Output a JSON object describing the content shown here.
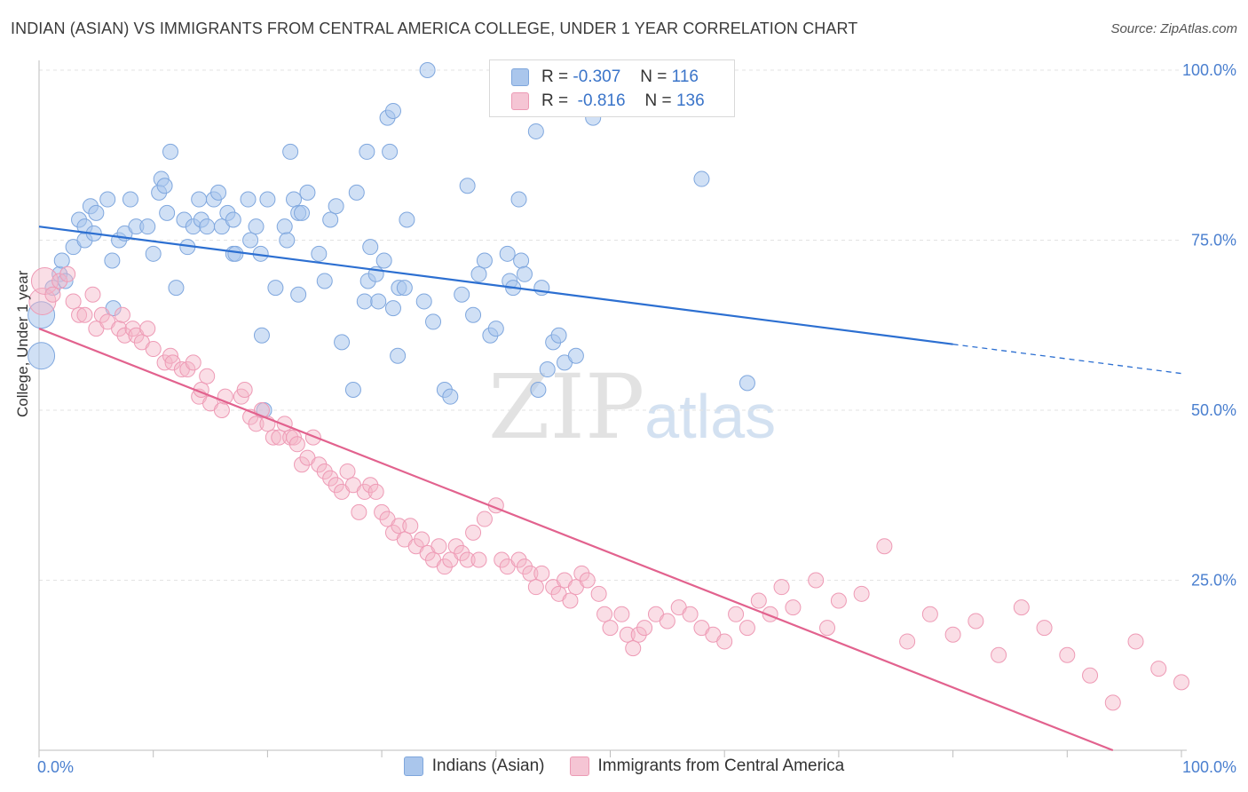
{
  "title": "INDIAN (ASIAN) VS IMMIGRANTS FROM CENTRAL AMERICA COLLEGE, UNDER 1 YEAR CORRELATION CHART",
  "source": "Source: ZipAtlas.com",
  "watermark": {
    "zip": "ZIP",
    "atlas": "atlas"
  },
  "legend_top": {
    "rows": [
      {
        "r_label": "R =",
        "r_value": "-0.307",
        "n_label": "N =",
        "n_value": "116",
        "color": "#aac6ec"
      },
      {
        "r_label": "R =",
        "r_value": "-0.816",
        "n_label": "N =",
        "n_value": "136",
        "color": "#f5b5c8"
      }
    ]
  },
  "legend_bottom": [
    {
      "label": "Indians (Asian)",
      "color": "#aac6ec"
    },
    {
      "label": "Immigrants from Central America",
      "color": "#f5b5c8"
    }
  ],
  "chart_data": {
    "type": "scatter",
    "xlabel": "",
    "ylabel": "College, Under 1 year",
    "xlim": [
      0,
      100
    ],
    "ylim": [
      0,
      100
    ],
    "x_ticklabels": [
      {
        "value": 0,
        "label": "0.0%"
      },
      {
        "value": 100,
        "label": "100.0%"
      }
    ],
    "y_ticklabels": [
      {
        "value": 100,
        "label": "100.0%"
      },
      {
        "value": 75,
        "label": "75.0%"
      },
      {
        "value": 50,
        "label": "50.0%"
      },
      {
        "value": 25,
        "label": "25.0%"
      }
    ],
    "grid": true,
    "series": [
      {
        "name": "Indians (Asian)",
        "color": "#6f9fdc",
        "trend": {
          "x0": 0,
          "y0": 77,
          "x1": 80,
          "y1": 59.7,
          "dash_to_x": 100,
          "dash_to_y": 55.4,
          "color": "#2c6fd1"
        },
        "points": [
          [
            0.2,
            58,
            "L"
          ],
          [
            0.2,
            64,
            "L"
          ],
          [
            1.2,
            68
          ],
          [
            1.8,
            70
          ],
          [
            2,
            72
          ],
          [
            2.3,
            69
          ],
          [
            3,
            74
          ],
          [
            3.5,
            78
          ],
          [
            4,
            77
          ],
          [
            4,
            75
          ],
          [
            4.5,
            80
          ],
          [
            4.8,
            76
          ],
          [
            5,
            79
          ],
          [
            6,
            81
          ],
          [
            6.4,
            72
          ],
          [
            6.5,
            65
          ],
          [
            7,
            75
          ],
          [
            7.5,
            76
          ],
          [
            8,
            81
          ],
          [
            8.5,
            77
          ],
          [
            9.5,
            77
          ],
          [
            10,
            73
          ],
          [
            10.5,
            82
          ],
          [
            10.7,
            84
          ],
          [
            11,
            83
          ],
          [
            11.2,
            79
          ],
          [
            11.5,
            88
          ],
          [
            12,
            68
          ],
          [
            12.7,
            78
          ],
          [
            13,
            74
          ],
          [
            13.5,
            77
          ],
          [
            14,
            81
          ],
          [
            14.2,
            78
          ],
          [
            14.7,
            77
          ],
          [
            15.3,
            81
          ],
          [
            15.7,
            82
          ],
          [
            16,
            77
          ],
          [
            16.5,
            79
          ],
          [
            17,
            73
          ],
          [
            17,
            78
          ],
          [
            17.2,
            73
          ],
          [
            18.3,
            81
          ],
          [
            18.5,
            75
          ],
          [
            19,
            77
          ],
          [
            19.4,
            73
          ],
          [
            19.5,
            61
          ],
          [
            19.7,
            50
          ],
          [
            20,
            81
          ],
          [
            20.7,
            68
          ],
          [
            21.5,
            77
          ],
          [
            21.7,
            75
          ],
          [
            22,
            88
          ],
          [
            22.3,
            81
          ],
          [
            22.7,
            67
          ],
          [
            22.7,
            79
          ],
          [
            23,
            79
          ],
          [
            23.5,
            82
          ],
          [
            24.5,
            73
          ],
          [
            25,
            69
          ],
          [
            25.5,
            78
          ],
          [
            26,
            80
          ],
          [
            26.5,
            60
          ],
          [
            27.5,
            53
          ],
          [
            27.8,
            82
          ],
          [
            28.5,
            66
          ],
          [
            28.7,
            88
          ],
          [
            28.8,
            69
          ],
          [
            29,
            74
          ],
          [
            29.5,
            70
          ],
          [
            29.7,
            66
          ],
          [
            30.2,
            72
          ],
          [
            30.5,
            93
          ],
          [
            30.7,
            88
          ],
          [
            31,
            65
          ],
          [
            31,
            94
          ],
          [
            31.4,
            58
          ],
          [
            31.5,
            68
          ],
          [
            32,
            68
          ],
          [
            32.2,
            78
          ],
          [
            33.7,
            66
          ],
          [
            34,
            100
          ],
          [
            34.5,
            63
          ],
          [
            35.5,
            53
          ],
          [
            36,
            52
          ],
          [
            37,
            67
          ],
          [
            37.5,
            83
          ],
          [
            38,
            64
          ],
          [
            38.5,
            70
          ],
          [
            39,
            72
          ],
          [
            39.5,
            61
          ],
          [
            40,
            62
          ],
          [
            41,
            73
          ],
          [
            41.2,
            69
          ],
          [
            41.5,
            68
          ],
          [
            42,
            81
          ],
          [
            42.2,
            72
          ],
          [
            42.5,
            70
          ],
          [
            43.5,
            91
          ],
          [
            43.7,
            53
          ],
          [
            44,
            68
          ],
          [
            44.5,
            56
          ],
          [
            45,
            60
          ],
          [
            45.5,
            61
          ],
          [
            46,
            57
          ],
          [
            47,
            58
          ],
          [
            48.5,
            93
          ],
          [
            50.2,
            97
          ],
          [
            58,
            84
          ],
          [
            62,
            54
          ]
        ]
      },
      {
        "name": "Immigrants from Central America",
        "color": "#ee8fad",
        "trend": {
          "x0": 0,
          "y0": 62,
          "x1": 94,
          "y1": 0,
          "color": "#e2628e"
        },
        "points": [
          [
            0.3,
            66,
            "L"
          ],
          [
            0.5,
            69,
            "L"
          ],
          [
            1.2,
            67
          ],
          [
            1.8,
            69
          ],
          [
            2.5,
            70
          ],
          [
            3,
            66
          ],
          [
            3.5,
            64
          ],
          [
            4,
            64
          ],
          [
            4.7,
            67
          ],
          [
            5,
            62
          ],
          [
            5.5,
            64
          ],
          [
            6,
            63
          ],
          [
            7,
            62
          ],
          [
            7.3,
            64
          ],
          [
            7.5,
            61
          ],
          [
            8.2,
            62
          ],
          [
            8.5,
            61
          ],
          [
            9,
            60
          ],
          [
            9.5,
            62
          ],
          [
            10,
            59
          ],
          [
            11,
            57
          ],
          [
            11.5,
            58
          ],
          [
            11.7,
            57
          ],
          [
            12.5,
            56
          ],
          [
            13,
            56
          ],
          [
            13.5,
            57
          ],
          [
            14,
            52
          ],
          [
            14.2,
            53
          ],
          [
            14.7,
            55
          ],
          [
            15,
            51
          ],
          [
            16,
            50
          ],
          [
            16.3,
            52
          ],
          [
            17.7,
            52
          ],
          [
            18,
            53
          ],
          [
            18.5,
            49
          ],
          [
            19,
            48
          ],
          [
            19.5,
            50
          ],
          [
            20,
            48
          ],
          [
            20.5,
            46
          ],
          [
            21,
            46
          ],
          [
            21.5,
            48
          ],
          [
            22,
            46
          ],
          [
            22.3,
            46
          ],
          [
            22.6,
            45
          ],
          [
            23,
            42
          ],
          [
            23.5,
            43
          ],
          [
            24,
            46
          ],
          [
            24.5,
            42
          ],
          [
            25,
            41
          ],
          [
            25.5,
            40
          ],
          [
            26,
            39
          ],
          [
            26.5,
            38
          ],
          [
            27,
            41
          ],
          [
            27.5,
            39
          ],
          [
            28,
            35
          ],
          [
            28.5,
            38
          ],
          [
            29,
            39
          ],
          [
            29.5,
            38
          ],
          [
            30,
            35
          ],
          [
            30.5,
            34
          ],
          [
            31,
            32
          ],
          [
            31.5,
            33
          ],
          [
            32,
            31
          ],
          [
            32.5,
            33
          ],
          [
            33,
            30
          ],
          [
            33.5,
            31
          ],
          [
            34,
            29
          ],
          [
            34.5,
            28
          ],
          [
            35,
            30
          ],
          [
            35.5,
            27
          ],
          [
            36,
            28
          ],
          [
            36.5,
            30
          ],
          [
            37,
            29
          ],
          [
            37.5,
            28
          ],
          [
            38,
            32
          ],
          [
            38.5,
            28
          ],
          [
            39,
            34
          ],
          [
            40,
            36
          ],
          [
            40.5,
            28
          ],
          [
            41,
            27
          ],
          [
            42,
            28
          ],
          [
            42.5,
            27
          ],
          [
            43,
            26
          ],
          [
            43.5,
            24
          ],
          [
            44,
            26
          ],
          [
            45,
            24
          ],
          [
            45.5,
            23
          ],
          [
            46,
            25
          ],
          [
            46.5,
            22
          ],
          [
            47,
            24
          ],
          [
            47.5,
            26
          ],
          [
            48,
            25
          ],
          [
            49,
            23
          ],
          [
            49.5,
            20
          ],
          [
            50,
            18
          ],
          [
            51,
            20
          ],
          [
            51.5,
            17
          ],
          [
            52,
            15
          ],
          [
            52.5,
            17
          ],
          [
            53,
            18
          ],
          [
            54,
            20
          ],
          [
            55,
            19
          ],
          [
            56,
            21
          ],
          [
            57,
            20
          ],
          [
            58,
            18
          ],
          [
            59,
            17
          ],
          [
            60,
            16
          ],
          [
            61,
            20
          ],
          [
            62,
            18
          ],
          [
            63,
            22
          ],
          [
            64,
            20
          ],
          [
            65,
            24
          ],
          [
            66,
            21
          ],
          [
            68,
            25
          ],
          [
            69,
            18
          ],
          [
            70,
            22
          ],
          [
            72,
            23
          ],
          [
            74,
            30
          ],
          [
            76,
            16
          ],
          [
            78,
            20
          ],
          [
            80,
            17
          ],
          [
            82,
            19
          ],
          [
            84,
            14
          ],
          [
            86,
            21
          ],
          [
            88,
            18
          ],
          [
            90,
            14
          ],
          [
            92,
            11
          ],
          [
            94,
            7
          ],
          [
            96,
            16
          ],
          [
            98,
            12
          ],
          [
            100,
            10
          ]
        ]
      }
    ]
  }
}
